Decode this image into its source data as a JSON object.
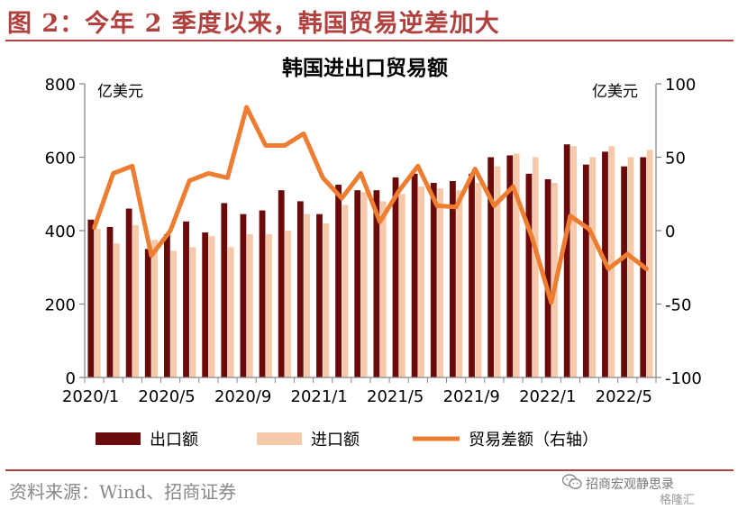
{
  "figure_title": "图 2：今年 2 季度以来，韩国贸易逆差加大",
  "source": "资料来源：Wind、招商证券",
  "watermark": {
    "line1": "招商宏观静思录",
    "line2": "格隆汇"
  },
  "colors": {
    "export": "#6b0a0a",
    "import": "#f7c9ab",
    "balance": "#ed7d31",
    "accent": "#b0413e"
  },
  "chart_data": {
    "type": "bar+line",
    "title": "韩国进出口贸易额",
    "left_axis": {
      "unit": "亿美元",
      "range": [
        0,
        800
      ],
      "ticks": [
        "0",
        "200",
        "400",
        "600",
        "800"
      ]
    },
    "right_axis": {
      "unit": "亿美元",
      "range": [
        -100,
        100
      ],
      "ticks": [
        "-100",
        "-50",
        "0",
        "50",
        "100"
      ]
    },
    "x_tick_labels": [
      "2020/1",
      "2020/5",
      "2020/9",
      "2021/1",
      "2021/5",
      "2021/9",
      "2022/1",
      "2022/5"
    ],
    "categories": [
      "2020/1",
      "2020/2",
      "2020/3",
      "2020/4",
      "2020/5",
      "2020/6",
      "2020/7",
      "2020/8",
      "2020/9",
      "2020/10",
      "2020/11",
      "2020/12",
      "2021/1",
      "2021/2",
      "2021/3",
      "2021/4",
      "2021/5",
      "2021/6",
      "2021/7",
      "2021/8",
      "2021/9",
      "2021/10",
      "2021/11",
      "2021/12",
      "2022/1",
      "2022/2",
      "2022/3",
      "2022/4",
      "2022/5",
      "2022/6"
    ],
    "series": [
      {
        "name": "出口额",
        "kind": "bar",
        "axis": "left",
        "values": [
          430,
          410,
          460,
          350,
          390,
          425,
          395,
          475,
          445,
          455,
          510,
          480,
          445,
          525,
          510,
          510,
          545,
          555,
          530,
          535,
          555,
          600,
          605,
          555,
          540,
          635,
          580,
          615,
          575,
          600
        ]
      },
      {
        "name": "进口额",
        "kind": "bar",
        "axis": "left",
        "values": [
          405,
          365,
          415,
          375,
          345,
          355,
          385,
          355,
          390,
          390,
          400,
          445,
          420,
          470,
          505,
          480,
          500,
          520,
          515,
          510,
          530,
          575,
          610,
          600,
          530,
          630,
          600,
          630,
          600,
          620
        ]
      },
      {
        "name": "贸易差额（右轴）",
        "kind": "line",
        "axis": "right",
        "values": [
          2,
          39,
          44,
          -17,
          0,
          34,
          39,
          36,
          84,
          58,
          58,
          66,
          36,
          22,
          39,
          6,
          27,
          44,
          17,
          16,
          42,
          17,
          30,
          -5,
          -49,
          10,
          1,
          -26,
          -16,
          -26
        ]
      }
    ],
    "legend_position": "bottom",
    "grid": false
  }
}
